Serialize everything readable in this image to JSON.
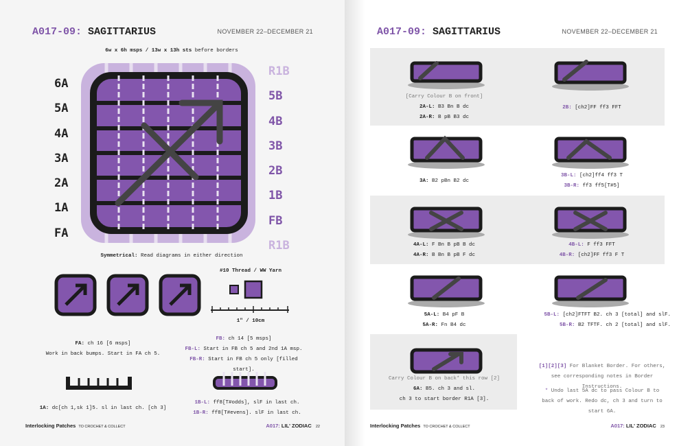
{
  "left": {
    "header": {
      "code": "A017-09:",
      "name": "SAGITTARIUS",
      "date": "NOVEMBER 22–DECEMBER 21"
    },
    "gauge": {
      "size": "6w x 6h msps / 13w x 13h sts",
      "note": "before borders"
    },
    "rows_a": [
      "6A",
      "5A",
      "4A",
      "3A",
      "2A",
      "1A",
      "FA"
    ],
    "rows_b": [
      "R1B",
      "5B",
      "4B",
      "3B",
      "2B",
      "1B",
      "FB",
      "R1B"
    ],
    "symmetry": {
      "label": "Symmetrical:",
      "text": "Read diagrams in either direction"
    },
    "yarn": "#10 Thread / WW Yarn",
    "scale": "1\" / 10cm",
    "fa": [
      {
        "label": "FA:",
        "text": "ch 16 [6 msps]"
      },
      {
        "label": "",
        "text": "Work in back bumps. Start in FA ch 5."
      }
    ],
    "fb": [
      {
        "label": "FB:",
        "text": "ch 14 [5 msps]"
      },
      {
        "label": "FB-L:",
        "text": "Start in FB ch 5 and 2nd 1A msp."
      },
      {
        "label": "FB-R:",
        "text": "Start in FB ch 5 only [filled start]."
      }
    ],
    "a1": [
      {
        "label": "1A:",
        "text": "dc[ch 1,sk 1]5. sl in last ch. [ch 3]"
      }
    ],
    "b1": [
      {
        "label": "1B-L:",
        "text": "ff8[T#odds], slF in last ch."
      },
      {
        "label": "1B-R:",
        "text": "ff8[T#evens]. slF in last ch."
      }
    ],
    "footer": {
      "book": "Interlocking Patches",
      "sub": "TO CROCHET & COLLECT",
      "code": "A017:",
      "name": "LIL' ZODIAC",
      "page": "22"
    }
  },
  "right": {
    "header": {
      "code": "A017-09:",
      "name": "SAGITTARIUS",
      "date": "NOVEMBER 22–DECEMBER 21"
    },
    "cells": [
      [
        {
          "label": "",
          "text": "[Carry Colour B on front]"
        },
        {
          "label": "2A-L:",
          "text": "B3 Bn B dc"
        },
        {
          "label": "2A-R:",
          "text": "B pB B3 dc"
        }
      ],
      [
        {
          "label": "2B:",
          "text": "[ch2]FF ff3 FFT"
        }
      ],
      [
        {
          "label": "3A:",
          "text": "B2 pBn B2 dc"
        }
      ],
      [
        {
          "label": "3B-L:",
          "text": "[ch2]ff4 ff3 T"
        },
        {
          "label": "3B-R:",
          "text": "ff3 ff5[T#5]"
        }
      ],
      [
        {
          "label": "4A-L:",
          "text": "F Bn B pB B dc"
        },
        {
          "label": "4A-R:",
          "text": "B Bn B pB F dc"
        }
      ],
      [
        {
          "label": "4B-L:",
          "text": "F ff3 FFT"
        },
        {
          "label": "4B-R:",
          "text": "[ch2]FF ff3 F T"
        }
      ],
      [
        {
          "label": "5A-L:",
          "text": "B4 pF B"
        },
        {
          "label": "5A-R:",
          "text": "Fn B4 dc"
        }
      ],
      [
        {
          "label": "5B-L:",
          "text": "[ch2]FTFT B2. ch 3 [total] and slF."
        },
        {
          "label": "5B-R:",
          "text": "B2 TFTF. ch 2 [total] and slF."
        }
      ],
      [
        {
          "label": "",
          "text": "Carry Colour B on back* this row [2]"
        },
        {
          "label": "6A:",
          "text": "B5. ch 3 and sl."
        },
        {
          "label": "",
          "text": "ch 3 to start border R1A [3]."
        }
      ]
    ],
    "notes": [
      {
        "label": "[1][2][3]",
        "text": "For Blanket Border. For others, see corresponding notes in Border Instructions."
      },
      {
        "label": "*",
        "text": "Undo last 5A dc to pass Colour B to back of work. Redo dc, ch 3 and turn to start 6A."
      }
    ],
    "footer": {
      "book": "Interlocking Patches",
      "sub": "TO CROCHET & COLLECT",
      "code": "A017:",
      "name": "LIL' ZODIAC",
      "page": "23"
    }
  }
}
